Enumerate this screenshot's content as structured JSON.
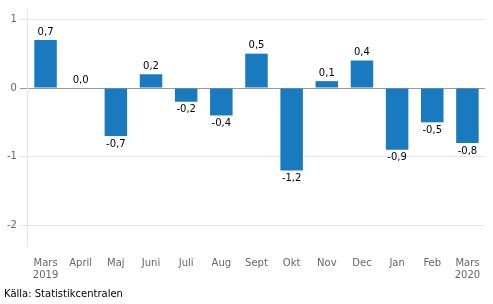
{
  "chart_data": {
    "type": "bar",
    "categories": [
      "Mars\n2019",
      "April",
      "Maj",
      "Juni",
      "Juli",
      "Aug",
      "Sept",
      "Okt",
      "Nov",
      "Dec",
      "Jan",
      "Feb",
      "Mars\n2020"
    ],
    "values": [
      0.7,
      0.0,
      -0.7,
      0.2,
      -0.2,
      -0.4,
      0.5,
      -1.2,
      0.1,
      0.4,
      -0.9,
      -0.5,
      -0.8
    ],
    "value_labels": [
      "0,7",
      "0,0",
      "-0,7",
      "0,2",
      "-0,2",
      "-0,4",
      "0,5",
      "-1,2",
      "0,1",
      "0,4",
      "-0,9",
      "-0,5",
      "-0,8"
    ],
    "color": "#1a7abf",
    "ylim": [
      -2.3,
      1.15
    ],
    "yticks": [
      -2,
      -1,
      0,
      1
    ],
    "grid": true,
    "data_labels": true,
    "annotations": [
      "Källa: Statistikcentralen"
    ]
  }
}
